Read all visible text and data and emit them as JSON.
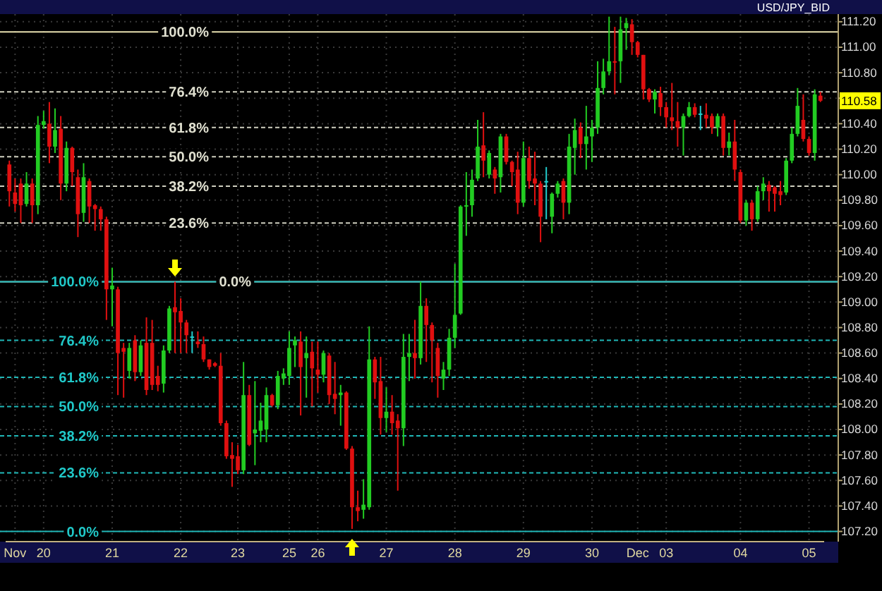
{
  "chart_data": {
    "type": "candlestick",
    "title": "USD/JPY_BID",
    "categories": [
      null,
      "Nov",
      null,
      null,
      null,
      null,
      "20",
      null,
      null,
      null,
      null,
      null,
      null,
      null,
      null,
      null,
      null,
      null,
      "21",
      null,
      null,
      null,
      null,
      null,
      null,
      null,
      null,
      null,
      null,
      null,
      "22",
      null,
      null,
      null,
      null,
      null,
      null,
      null,
      null,
      null,
      "23",
      null,
      null,
      null,
      null,
      null,
      null,
      null,
      null,
      "25",
      null,
      null,
      null,
      null,
      "26",
      null,
      null,
      null,
      null,
      null,
      null,
      null,
      null,
      null,
      null,
      null,
      "27",
      null,
      null,
      null,
      null,
      null,
      null,
      null,
      null,
      null,
      null,
      null,
      "28",
      null,
      null,
      null,
      null,
      null,
      null,
      null,
      null,
      null,
      null,
      null,
      "29",
      null,
      null,
      null,
      null,
      null,
      null,
      null,
      null,
      null,
      null,
      null,
      "30",
      null,
      null,
      null,
      null,
      null,
      null,
      null,
      "Dec",
      null,
      null,
      null,
      null,
      "03",
      null,
      null,
      null,
      null,
      null,
      null,
      null,
      null,
      null,
      null,
      null,
      null,
      "04",
      null,
      null,
      null,
      null,
      null,
      null,
      null,
      null,
      null,
      null,
      null,
      "05",
      null,
      null
    ],
    "ohlc": [
      [
        110.08,
        110.11,
        109.75,
        109.87
      ],
      [
        109.86,
        109.97,
        109.71,
        109.77
      ],
      [
        109.93,
        109.97,
        109.62,
        109.76
      ],
      [
        109.77,
        110.02,
        109.75,
        109.93
      ],
      [
        109.93,
        109.97,
        109.62,
        109.76
      ],
      [
        109.76,
        110.46,
        109.69,
        110.39
      ],
      [
        110.39,
        110.5,
        110.36,
        110.42
      ],
      [
        110.4,
        110.57,
        110.09,
        110.22
      ],
      [
        110.22,
        110.52,
        110.17,
        110.35
      ],
      [
        110.36,
        110.46,
        109.8,
        109.93
      ],
      [
        109.93,
        110.26,
        109.87,
        110.21
      ],
      [
        110.21,
        110.22,
        109.91,
        110.02
      ],
      [
        109.98,
        110.04,
        109.51,
        109.69
      ],
      [
        109.7,
        110.09,
        109.63,
        109.98
      ],
      [
        109.95,
        109.97,
        109.62,
        109.75
      ],
      [
        109.76,
        109.77,
        109.56,
        109.73
      ],
      [
        109.73,
        109.75,
        109.56,
        109.65
      ],
      [
        109.65,
        109.67,
        108.86,
        109.1
      ],
      [
        109.1,
        109.27,
        108.81,
        109.13
      ],
      [
        109.1,
        109.12,
        108.27,
        108.6
      ],
      [
        108.64,
        108.68,
        108.25,
        108.61
      ],
      [
        108.46,
        108.68,
        108.4,
        108.64
      ],
      [
        108.7,
        108.74,
        108.38,
        108.45
      ],
      [
        108.45,
        108.7,
        108.42,
        108.66
      ],
      [
        108.68,
        108.88,
        108.27,
        108.31
      ],
      [
        108.68,
        108.86,
        108.31,
        108.35
      ],
      [
        108.42,
        108.5,
        108.3,
        108.35
      ],
      [
        108.36,
        108.66,
        108.29,
        108.62
      ],
      [
        108.62,
        108.97,
        108.6,
        108.95
      ],
      [
        108.96,
        109.16,
        108.6,
        108.92
      ],
      [
        108.93,
        109.03,
        108.6,
        108.84
      ],
      [
        108.84,
        108.86,
        108.6,
        108.74
      ],
      [
        108.73,
        108.77,
        108.6,
        108.73
      ],
      [
        108.69,
        108.77,
        108.64,
        108.67
      ],
      [
        108.67,
        108.73,
        108.53,
        108.55
      ],
      [
        108.55,
        108.55,
        108.47,
        108.49
      ],
      [
        108.52,
        108.53,
        108.49,
        108.5
      ],
      [
        108.5,
        108.6,
        108.03,
        108.05
      ],
      [
        108.05,
        108.07,
        107.77,
        107.79
      ],
      [
        107.8,
        107.9,
        107.55,
        107.77
      ],
      [
        107.79,
        107.88,
        107.65,
        107.68
      ],
      [
        107.68,
        108.53,
        107.65,
        108.27
      ],
      [
        108.27,
        108.35,
        107.87,
        107.88
      ],
      [
        107.97,
        108.38,
        107.72,
        108.0
      ],
      [
        107.99,
        108.21,
        107.9,
        108.07
      ],
      [
        108.0,
        108.33,
        107.9,
        108.27
      ],
      [
        108.27,
        108.28,
        108.18,
        108.19
      ],
      [
        108.19,
        108.46,
        108.16,
        108.42
      ],
      [
        108.4,
        108.48,
        108.35,
        108.44
      ],
      [
        108.42,
        108.77,
        108.35,
        108.64
      ],
      [
        108.66,
        108.73,
        108.49,
        108.7
      ],
      [
        108.69,
        108.77,
        108.11,
        108.49
      ],
      [
        108.56,
        108.73,
        108.25,
        108.6
      ],
      [
        108.61,
        108.69,
        108.18,
        108.48
      ],
      [
        108.47,
        108.69,
        108.29,
        108.43
      ],
      [
        108.43,
        108.62,
        108.37,
        108.6
      ],
      [
        108.58,
        108.6,
        108.2,
        108.27
      ],
      [
        108.28,
        108.53,
        108.12,
        108.24
      ],
      [
        108.27,
        108.35,
        108.03,
        108.29
      ],
      [
        108.29,
        108.3,
        107.84,
        107.85
      ],
      [
        107.85,
        107.87,
        107.22,
        107.39
      ],
      [
        107.39,
        107.52,
        107.28,
        107.36
      ],
      [
        107.37,
        107.61,
        107.3,
        107.41
      ],
      [
        107.39,
        108.81,
        107.37,
        108.55
      ],
      [
        108.55,
        108.57,
        108.24,
        108.37
      ],
      [
        108.38,
        108.57,
        107.96,
        108.09
      ],
      [
        108.09,
        108.33,
        107.98,
        108.14
      ],
      [
        108.14,
        108.27,
        107.96,
        108.05
      ],
      [
        108.07,
        108.12,
        107.52,
        108.01
      ],
      [
        108.01,
        108.75,
        107.87,
        108.57
      ],
      [
        108.57,
        108.75,
        108.38,
        108.6
      ],
      [
        108.6,
        108.86,
        108.4,
        108.56
      ],
      [
        108.56,
        109.16,
        108.51,
        108.97
      ],
      [
        108.97,
        109.03,
        108.53,
        108.82
      ],
      [
        108.82,
        108.84,
        108.37,
        108.7
      ],
      [
        108.64,
        108.68,
        108.25,
        108.42
      ],
      [
        108.4,
        108.53,
        108.31,
        108.47
      ],
      [
        108.47,
        108.79,
        108.42,
        108.72
      ],
      [
        108.72,
        109.3,
        108.64,
        108.9
      ],
      [
        108.91,
        109.76,
        108.9,
        109.75
      ],
      [
        109.75,
        110.02,
        109.52,
        109.76
      ],
      [
        109.76,
        110.04,
        109.67,
        109.96
      ],
      [
        109.97,
        110.43,
        109.95,
        110.22
      ],
      [
        110.23,
        110.49,
        109.98,
        110.11
      ],
      [
        110.0,
        110.19,
        109.97,
        110.17
      ],
      [
        110.04,
        110.06,
        109.85,
        109.97
      ],
      [
        109.98,
        110.32,
        109.86,
        110.3
      ],
      [
        110.3,
        110.32,
        110.08,
        110.1
      ],
      [
        110.1,
        110.11,
        109.91,
        110.02
      ],
      [
        110.04,
        110.18,
        109.69,
        109.78
      ],
      [
        109.78,
        110.26,
        109.75,
        110.13
      ],
      [
        110.13,
        110.22,
        109.89,
        109.95
      ],
      [
        109.97,
        110.18,
        109.76,
        109.93
      ],
      [
        109.93,
        109.95,
        109.47,
        109.67
      ],
      [
        109.95,
        110.06,
        109.65,
        109.95
      ],
      [
        109.67,
        109.86,
        109.54,
        109.85
      ],
      [
        109.85,
        109.95,
        109.82,
        109.93
      ],
      [
        109.95,
        109.97,
        109.65,
        109.78
      ],
      [
        109.78,
        110.32,
        109.69,
        110.22
      ],
      [
        110.21,
        110.44,
        110.0,
        110.35
      ],
      [
        110.37,
        110.41,
        110.13,
        110.24
      ],
      [
        110.24,
        110.54,
        110.04,
        110.3
      ],
      [
        110.3,
        110.43,
        110.1,
        110.37
      ],
      [
        110.37,
        110.89,
        110.32,
        110.68
      ],
      [
        110.68,
        110.91,
        110.63,
        110.81
      ],
      [
        110.81,
        111.24,
        110.78,
        110.89
      ],
      [
        110.89,
        111.16,
        110.63,
        110.88
      ],
      [
        110.89,
        111.24,
        110.72,
        111.14
      ],
      [
        111.15,
        111.23,
        110.98,
        111.19
      ],
      [
        111.18,
        111.22,
        110.94,
        111.04
      ],
      [
        111.04,
        111.05,
        110.92,
        110.94
      ],
      [
        110.94,
        110.94,
        110.59,
        110.67
      ],
      [
        110.67,
        110.68,
        110.57,
        110.59
      ],
      [
        110.59,
        110.67,
        110.48,
        110.65
      ],
      [
        110.64,
        110.69,
        110.46,
        110.53
      ],
      [
        110.53,
        110.57,
        110.37,
        110.45
      ],
      [
        110.45,
        110.72,
        110.35,
        110.42
      ],
      [
        110.42,
        110.57,
        110.22,
        110.37
      ],
      [
        110.37,
        110.48,
        110.15,
        110.46
      ],
      [
        110.46,
        110.57,
        110.45,
        110.53
      ],
      [
        110.53,
        110.56,
        110.45,
        110.47
      ],
      [
        110.48,
        110.54,
        110.35,
        110.48
      ],
      [
        110.47,
        110.56,
        110.37,
        110.44
      ],
      [
        110.46,
        110.48,
        110.32,
        110.37
      ],
      [
        110.37,
        110.48,
        110.3,
        110.46
      ],
      [
        110.46,
        110.48,
        110.15,
        110.21
      ],
      [
        110.21,
        110.33,
        110.15,
        110.26
      ],
      [
        110.26,
        110.43,
        109.95,
        110.04
      ],
      [
        110.02,
        110.04,
        109.62,
        109.64
      ],
      [
        109.64,
        109.8,
        109.6,
        109.78
      ],
      [
        109.78,
        109.8,
        109.56,
        109.65
      ],
      [
        109.65,
        109.91,
        109.63,
        109.87
      ],
      [
        109.87,
        109.98,
        109.8,
        109.93
      ],
      [
        109.92,
        109.95,
        109.71,
        109.87
      ],
      [
        109.9,
        109.91,
        109.71,
        109.85
      ],
      [
        109.87,
        109.95,
        109.76,
        109.84
      ],
      [
        109.86,
        110.13,
        109.84,
        110.11
      ],
      [
        110.11,
        110.37,
        110.09,
        110.32
      ],
      [
        110.32,
        110.68,
        110.3,
        110.54
      ],
      [
        110.43,
        110.63,
        110.26,
        110.28
      ],
      [
        110.28,
        110.3,
        110.15,
        110.17
      ],
      [
        110.17,
        110.67,
        110.11,
        110.63
      ],
      [
        110.62,
        110.65,
        110.57,
        110.58
      ]
    ],
    "colors": [
      "#e01010",
      "#e01010",
      "#e01010",
      "#22cc22",
      "#e01010",
      "#22cc22",
      "#22cc22",
      "#e01010",
      "#22cc22",
      "#e01010",
      "#22cc22",
      "#e01010",
      "#e01010",
      "#22cc22",
      "#e01010",
      "#e01010",
      "#e01010",
      "#e01010",
      "#22cc22",
      "#e01010",
      "#e01010",
      "#22cc22",
      "#e01010",
      "#22cc22",
      "#e01010",
      "#e01010",
      "#e01010",
      "#22cc22",
      "#22cc22",
      "#e01010",
      "#e01010",
      "#e01010",
      "#22cccc",
      "#e01010",
      "#e01010",
      "#e01010",
      "#e01010",
      "#e01010",
      "#e01010",
      "#e01010",
      "#e01010",
      "#22cc22",
      "#e01010",
      "#22cc22",
      "#22cc22",
      "#22cc22",
      "#e01010",
      "#22cc22",
      "#22cc22",
      "#22cc22",
      "#22cc22",
      "#e01010",
      "#22cc22",
      "#e01010",
      "#e01010",
      "#22cc22",
      "#e01010",
      "#e01010",
      "#22cc22",
      "#e01010",
      "#e01010",
      "#e01010",
      "#22cc22",
      "#22cc22",
      "#e01010",
      "#e01010",
      "#22cc22",
      "#e01010",
      "#e01010",
      "#22cc22",
      "#22cc22",
      "#e01010",
      "#22cc22",
      "#e01010",
      "#e01010",
      "#e01010",
      "#22cc22",
      "#22cc22",
      "#22cc22",
      "#22cc22",
      "#22cc22",
      "#22cc22",
      "#22cc22",
      "#e01010",
      "#22cc22",
      "#e01010",
      "#22cc22",
      "#e01010",
      "#e01010",
      "#e01010",
      "#22cc22",
      "#e01010",
      "#e01010",
      "#e01010",
      "#22cccc",
      "#22cc22",
      "#22cc22",
      "#e01010",
      "#22cc22",
      "#22cc22",
      "#e01010",
      "#22cc22",
      "#22cc22",
      "#22cc22",
      "#22cc22",
      "#22cc22",
      "#e01010",
      "#22cc22",
      "#22cc22",
      "#e01010",
      "#e01010",
      "#e01010",
      "#e01010",
      "#22cc22",
      "#e01010",
      "#e01010",
      "#e01010",
      "#e01010",
      "#22cc22",
      "#22cc22",
      "#e01010",
      "#22cccc",
      "#e01010",
      "#e01010",
      "#22cc22",
      "#e01010",
      "#22cc22",
      "#e01010",
      "#e01010",
      "#22cc22",
      "#e01010",
      "#22cc22",
      "#22cc22",
      "#e01010",
      "#e01010",
      "#e01010",
      "#22cc22",
      "#22cc22",
      "#22cc22",
      "#e01010",
      "#e01010",
      "#22cc22",
      "#e01010"
    ],
    "ylim": [
      107.12,
      111.26
    ],
    "yticks": [
      {
        "value": 107.2,
        "label": "107.20"
      },
      {
        "value": 107.4,
        "label": "107.40"
      },
      {
        "value": 107.6,
        "label": "107.60"
      },
      {
        "value": 107.8,
        "label": "107.80"
      },
      {
        "value": 108.0,
        "label": "108.00"
      },
      {
        "value": 108.2,
        "label": "108.20"
      },
      {
        "value": 108.4,
        "label": "108.40"
      },
      {
        "value": 108.6,
        "label": "108.60"
      },
      {
        "value": 108.8,
        "label": "108.80"
      },
      {
        "value": 109.0,
        "label": "109.00"
      },
      {
        "value": 109.2,
        "label": "109.20"
      },
      {
        "value": 109.4,
        "label": "109.40"
      },
      {
        "value": 109.6,
        "label": "109.60"
      },
      {
        "value": 109.8,
        "label": "109.80"
      },
      {
        "value": 110.0,
        "label": "110.00"
      },
      {
        "value": 110.2,
        "label": "110.20"
      },
      {
        "value": 110.4,
        "label": "110.40"
      },
      {
        "value": 110.6,
        "label": null
      },
      {
        "value": 110.8,
        "label": "110.80"
      },
      {
        "value": 111.0,
        "label": "111.00"
      },
      {
        "value": 111.2,
        "label": "111.20"
      }
    ],
    "grid": true,
    "ref_lines": [
      {
        "axis": "y",
        "value": 111.12,
        "color": "#e8e0b0",
        "line_style": "solid"
      },
      {
        "axis": "y",
        "value": 110.65,
        "color": "#d0d0c0",
        "line_style": "dashed"
      },
      {
        "axis": "y",
        "value": 110.37,
        "color": "#d0d0c0",
        "line_style": "dashed"
      },
      {
        "axis": "y",
        "value": 110.14,
        "color": "#d0d0c0",
        "line_style": "dashed"
      },
      {
        "axis": "y",
        "value": 109.91,
        "color": "#d0d0c0",
        "line_style": "dashed"
      },
      {
        "axis": "y",
        "value": 109.62,
        "color": "#d0d0c0",
        "line_style": "dashed"
      },
      {
        "axis": "y",
        "value": 109.16,
        "color": "#d0d0c0",
        "line_style": "solid"
      },
      {
        "axis": "y",
        "value": 109.16,
        "color": "#20b8b8",
        "line_style": "solid"
      },
      {
        "axis": "y",
        "value": 108.7,
        "color": "#20b8b8",
        "line_style": "dashed"
      },
      {
        "axis": "y",
        "value": 108.41,
        "color": "#20b8b8",
        "line_style": "dashed"
      },
      {
        "axis": "y",
        "value": 108.18,
        "color": "#20b8b8",
        "line_style": "dashed"
      },
      {
        "axis": "y",
        "value": 107.95,
        "color": "#20b8b8",
        "line_style": "dashed"
      },
      {
        "axis": "y",
        "value": 107.66,
        "color": "#20b8b8",
        "line_style": "dashed"
      },
      {
        "axis": "y",
        "value": 107.2,
        "color": "#20b8b8",
        "line_style": "solid"
      }
    ],
    "annotations": [
      {
        "text": "100.0%",
        "y": 111.12
      },
      {
        "text": "76.4%",
        "y": 110.65
      },
      {
        "text": "61.8%",
        "y": 110.37
      },
      {
        "text": "50.0%",
        "y": 110.14
      },
      {
        "text": "38.2%",
        "y": 109.91
      },
      {
        "text": "23.6%",
        "y": 109.62
      },
      {
        "text": "0.0%",
        "y": 109.16
      },
      {
        "text": "100.0%",
        "y": 109.16
      },
      {
        "text": "76.4%",
        "y": 108.7
      },
      {
        "text": "61.8%",
        "y": 108.41
      },
      {
        "text": "50.0%",
        "y": 108.18
      },
      {
        "text": "38.2%",
        "y": 107.95
      },
      {
        "text": "23.6%",
        "y": 107.66
      },
      {
        "text": "0.0%",
        "y": 107.2
      },
      "110.58"
    ]
  }
}
